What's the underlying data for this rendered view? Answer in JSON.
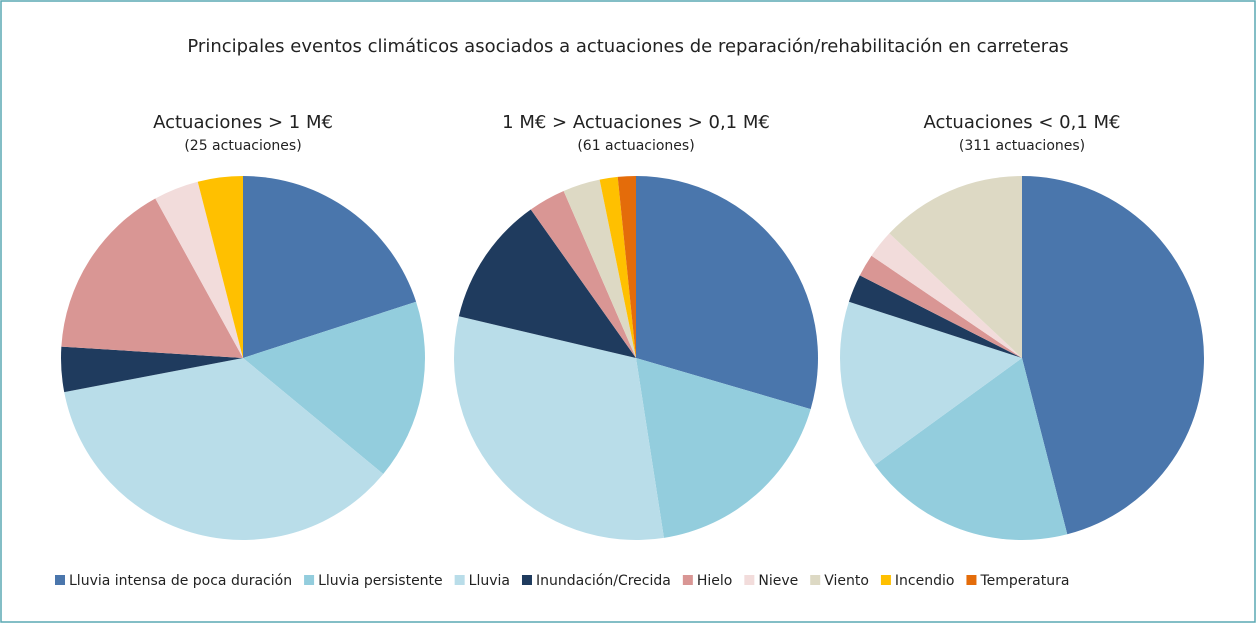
{
  "title": "Principales eventos climáticos asociados a actuaciones de reparación/rehabilitación en carreteras",
  "legend": [
    {
      "name": "Lluvia intensa de poca duración",
      "color": "#4a76ac"
    },
    {
      "name": "Lluvia persistente",
      "color": "#93cddd"
    },
    {
      "name": "Lluvia",
      "color": "#b9dde9"
    },
    {
      "name": "Inundación/Crecida",
      "color": "#1f3b5e"
    },
    {
      "name": "Hielo",
      "color": "#d99694"
    },
    {
      "name": "Nieve",
      "color": "#f2dcdb"
    },
    {
      "name": "Viento",
      "color": "#ddd9c4"
    },
    {
      "name": "Incendio",
      "color": "#ffc000"
    },
    {
      "name": "Temperatura",
      "color": "#e46c0a"
    }
  ],
  "chart_data": [
    {
      "type": "pie",
      "title": "Actuaciones > 1 M€",
      "subtitle": "(25 actuaciones)",
      "values": [
        20,
        16,
        36,
        4,
        16,
        4,
        0,
        4,
        0
      ]
    },
    {
      "type": "pie",
      "title": "1 M€ > Actuaciones > 0,1 M€",
      "subtitle": "(61 actuaciones)",
      "values": [
        29.5,
        18,
        31.1,
        11.5,
        3.3,
        0,
        3.3,
        1.6,
        1.6
      ]
    },
    {
      "type": "pie",
      "title": "Actuaciones < 0,1 M€",
      "subtitle": "(311 actuaciones)",
      "values": [
        46,
        19,
        15,
        2.5,
        2,
        2.5,
        13,
        0,
        0
      ]
    }
  ]
}
